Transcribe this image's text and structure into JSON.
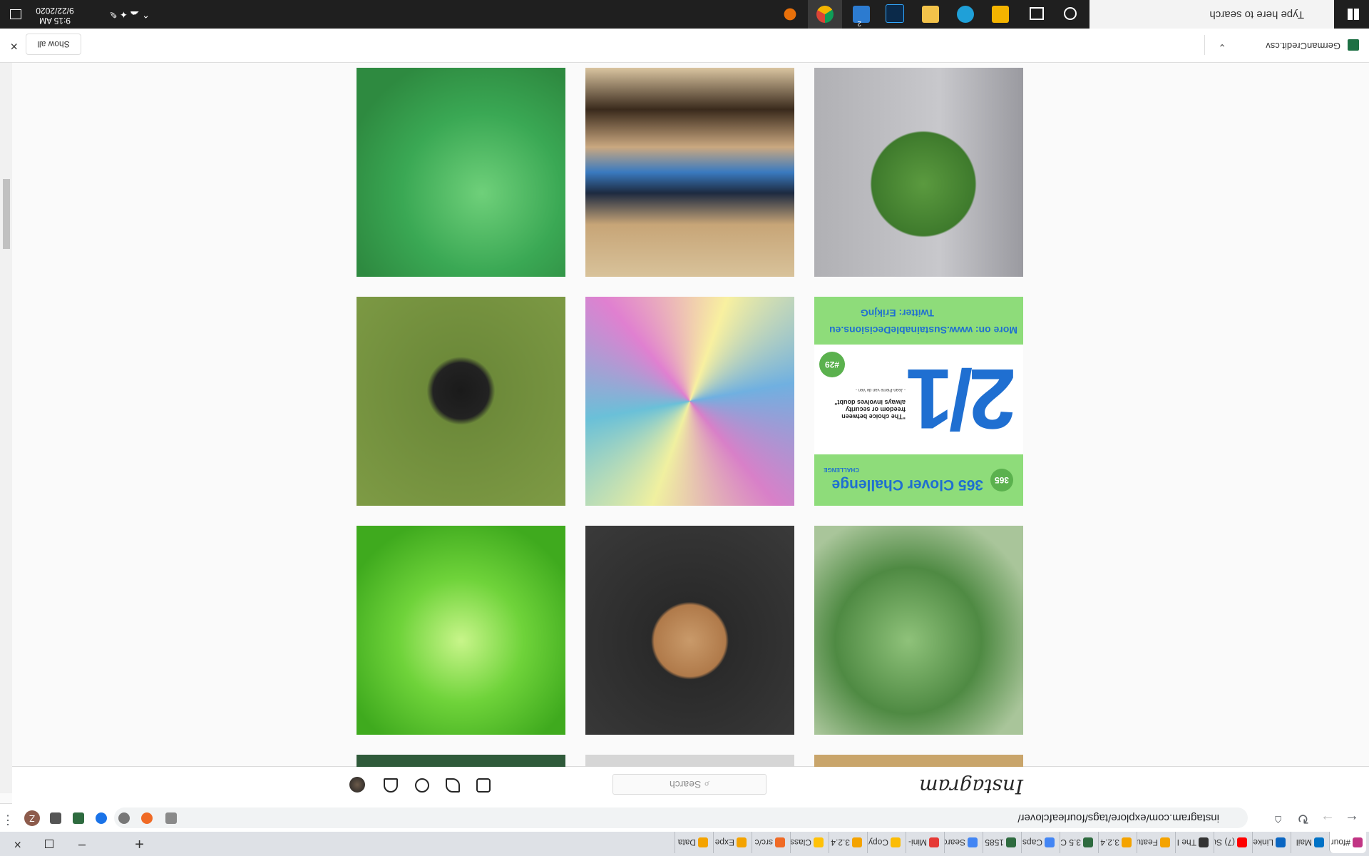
{
  "tabs": [
    "#four",
    "Mail",
    "Linke",
    "(7) Su",
    "The I",
    "Featu",
    "3.2.4",
    "3.5 C",
    "Caps",
    "1585",
    "Searc",
    "Mini-",
    "Copy",
    "3.2.4",
    "Class",
    "src/c",
    "Expe",
    "Data"
  ],
  "address": "instagram.com/explore/tags/fourleafclover/",
  "profile": "Z",
  "instagram": {
    "logo": "Instagram",
    "search": "Search"
  },
  "post": {
    "badge": "365",
    "title": "365 Clover Challenge",
    "subtitle": "CHALLENGE",
    "day": "#29",
    "numeral": "2/1",
    "quote": "\"The choice between freedom or security always involves doubt\"",
    "author": "- Jean-Pierre van de Ven -",
    "link": "More on: www.SustainableDecisions.eu",
    "twitter": "Twitter: ErikjnG"
  },
  "download": {
    "file": "GermanCredit.csv",
    "show_all": "Show all"
  },
  "taskbar": {
    "search": "Type here to search",
    "time": "9:15 AM",
    "date": "9/22/2020",
    "badge": "2"
  }
}
